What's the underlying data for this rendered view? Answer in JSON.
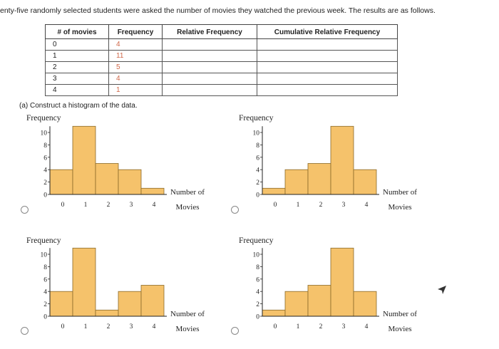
{
  "question": {
    "text": "enty-five randomly selected students were asked the number of movies they watched the previous week. The results are as follows."
  },
  "table": {
    "headers": [
      "# of movies",
      "Frequency",
      "Relative Frequency",
      "Cumulative Relative Frequency"
    ],
    "rows": [
      {
        "movies": "0",
        "frequency": "4",
        "relative": "",
        "cumulative": ""
      },
      {
        "movies": "1",
        "frequency": "11",
        "relative": "",
        "cumulative": ""
      },
      {
        "movies": "2",
        "frequency": "5",
        "relative": "",
        "cumulative": ""
      },
      {
        "movies": "3",
        "frequency": "4",
        "relative": "",
        "cumulative": ""
      },
      {
        "movies": "4",
        "frequency": "1",
        "relative": "",
        "cumulative": ""
      }
    ]
  },
  "part_a": {
    "text": "(a) Construct a histogram of the data."
  },
  "colors": {
    "bar_fill": "#f5c26b",
    "bar_stroke": "#8a6a2a",
    "axis": "#222222"
  },
  "chart_data": [
    {
      "type": "bar",
      "option": "A",
      "categories": [
        "0",
        "1",
        "2",
        "3",
        "4"
      ],
      "values": [
        4,
        11,
        5,
        4,
        1
      ],
      "ylabel": "Frequency",
      "xlabel": [
        "Number of",
        "Movies"
      ],
      "yticks": [
        "0",
        "2",
        "4",
        "6",
        "8",
        "10"
      ],
      "ylim": [
        0,
        11
      ]
    },
    {
      "type": "bar",
      "option": "B",
      "categories": [
        "0",
        "1",
        "2",
        "3",
        "4"
      ],
      "values": [
        1,
        4,
        5,
        11,
        4
      ],
      "ylabel": "Frequency",
      "xlabel": [
        "Number of",
        "Movies"
      ],
      "yticks": [
        "0",
        "2",
        "4",
        "6",
        "8",
        "10"
      ],
      "ylim": [
        0,
        11
      ]
    },
    {
      "type": "bar",
      "option": "C",
      "categories": [
        "0",
        "1",
        "2",
        "3",
        "4"
      ],
      "values": [
        4,
        11,
        1,
        4,
        5
      ],
      "ylabel": "Frequency",
      "xlabel": [
        "Number of",
        "Movies"
      ],
      "yticks": [
        "0",
        "2",
        "4",
        "6",
        "8",
        "10"
      ],
      "ylim": [
        0,
        11
      ]
    },
    {
      "type": "bar",
      "option": "D",
      "categories": [
        "0",
        "1",
        "2",
        "3",
        "4"
      ],
      "values": [
        1,
        4,
        5,
        11,
        4
      ],
      "values_note_visible": false,
      "ylabel": "Frequency",
      "xlabel": [
        "Number of",
        "Movies"
      ],
      "yticks": [
        "0",
        "2",
        "4",
        "6",
        "8",
        "10"
      ],
      "ylim": [
        0,
        11
      ]
    }
  ]
}
